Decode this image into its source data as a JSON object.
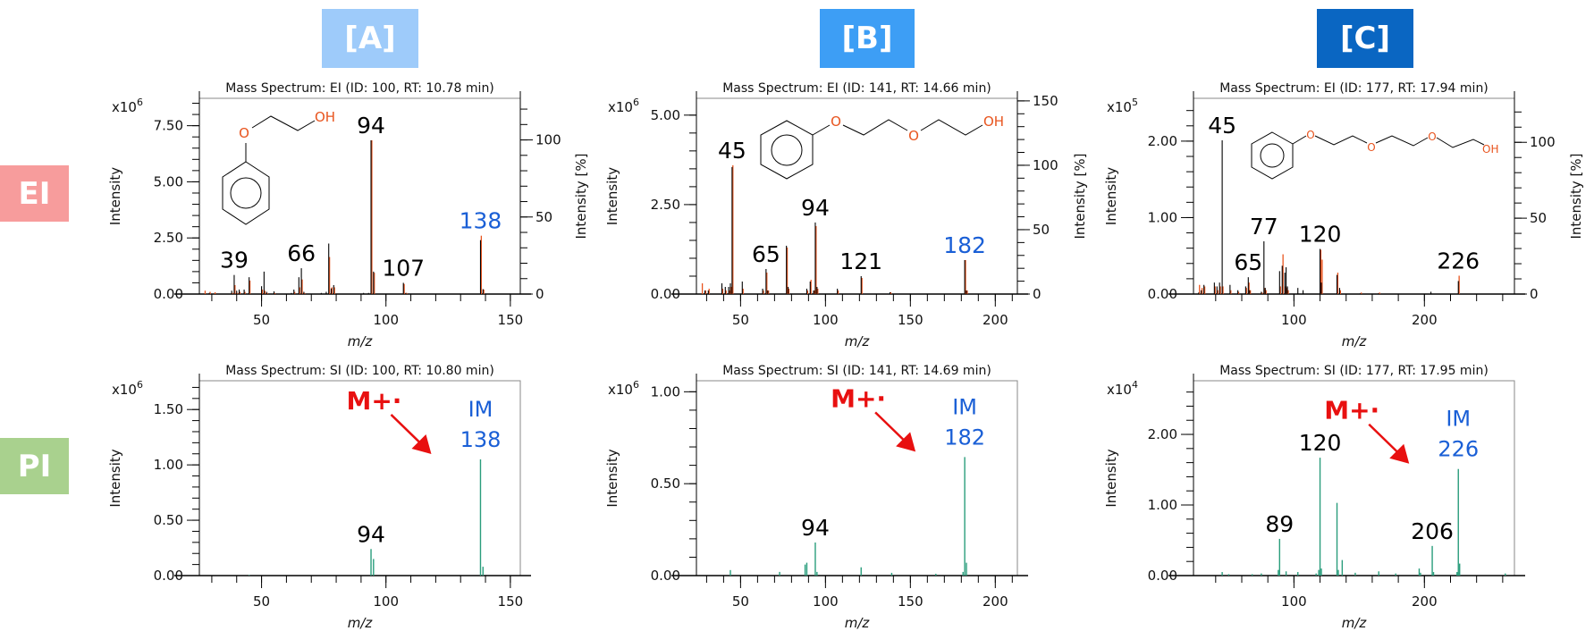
{
  "row_labels": {
    "ei": {
      "text": "EI",
      "color": "#f79c9c"
    },
    "pi": {
      "text": "PI",
      "color": "#a9d18e"
    }
  },
  "colors": {
    "measured": "#000000",
    "reference": "#e8541e",
    "si": "#2a9d7c",
    "molecular_ion_label": "#1a5fd6",
    "arrow": "#e81010",
    "heteroatom": "#e8541e"
  },
  "columns": [
    {
      "header": "[A]",
      "header_color": "#9ecbfa",
      "structure": {
        "atoms": [
          "O",
          "OH"
        ]
      },
      "ei": {
        "title": "Mass Spectrum: EI (ID: 100, RT: 10.78 min)",
        "y_multiplier": "x10",
        "y_exponent": "6",
        "ylabel": "Intensity",
        "xlabel": "m/z",
        "ylim": [
          0,
          8.72
        ],
        "yticks": [
          "0.00",
          "2.50",
          "5.00",
          "7.50"
        ],
        "yminor": 0.5,
        "xlim": [
          25,
          154
        ],
        "xticks": [
          50,
          100,
          150
        ],
        "xminor": 10,
        "right_axis": {
          "label": "Intensity [%]",
          "ylim": [
            0,
            127
          ],
          "ticks": [
            0,
            50,
            100
          ],
          "minor": 10
        },
        "peaks": [
          [
            27,
            0,
            0.15
          ],
          [
            29,
            0.05,
            0.1
          ],
          [
            31,
            0,
            0.08
          ],
          [
            38,
            0.15,
            0.05
          ],
          [
            39,
            0.85,
            0.4
          ],
          [
            40,
            0.15,
            0.05
          ],
          [
            41,
            0.2,
            0.1
          ],
          [
            43,
            0.2,
            0.1
          ],
          [
            45,
            0.75,
            0.6
          ],
          [
            50,
            0.35,
            0.2
          ],
          [
            51,
            1.0,
            0.15
          ],
          [
            52,
            0.1,
            0.05
          ],
          [
            55,
            0.12,
            0.05
          ],
          [
            62,
            0.05,
            0
          ],
          [
            63,
            0.2,
            0.1
          ],
          [
            65,
            0.75,
            0.3
          ],
          [
            66,
            1.15,
            0.65
          ],
          [
            67,
            0.1,
            0.05
          ],
          [
            74,
            0.05,
            0
          ],
          [
            76,
            0.1,
            0
          ],
          [
            77,
            2.25,
            1.65
          ],
          [
            78,
            0.25,
            0.3
          ],
          [
            79,
            0.4,
            0.3
          ],
          [
            91,
            0.05,
            0
          ],
          [
            93,
            0.05,
            0
          ],
          [
            94,
            6.85,
            6.85
          ],
          [
            95,
            1.0,
            0.95
          ],
          [
            107,
            0.5,
            0.45
          ],
          [
            108,
            0.05,
            0.05
          ],
          [
            138,
            2.4,
            2.6
          ],
          [
            139,
            0.22,
            0.2
          ]
        ],
        "labels": [
          {
            "text": "39",
            "mz": 39
          },
          {
            "text": "66",
            "mz": 66
          },
          {
            "text": "94",
            "mz": 94
          },
          {
            "text": "107",
            "mz": 107
          },
          {
            "text": "138",
            "mz": 138,
            "blue": true
          }
        ]
      },
      "si": {
        "title": "Mass Spectrum: SI (ID: 100, RT: 10.80 min)",
        "y_multiplier": "x10",
        "y_exponent": "6",
        "ylabel": "Intensity",
        "xlabel": "m/z",
        "ylim": [
          0,
          1.76
        ],
        "yticks": [
          "0.00",
          "0.50",
          "1.00",
          "1.50"
        ],
        "yminor": 0.1,
        "xlim": [
          25,
          154
        ],
        "xticks": [
          50,
          100,
          150
        ],
        "xminor": 10,
        "peaks": [
          [
            45,
            0.005
          ],
          [
            94,
            0.24
          ],
          [
            95,
            0.15
          ],
          [
            138,
            1.05
          ],
          [
            139,
            0.08
          ]
        ],
        "labels": [
          {
            "text": "94",
            "mz": 94
          }
        ],
        "molecular_ion": {
          "mz": 138,
          "tag": "IM",
          "text": "138",
          "annotation": "M+·"
        }
      }
    },
    {
      "header": "[B]",
      "header_color": "#3d9ef5",
      "structure": {
        "atoms": [
          "O",
          "O",
          "OH"
        ]
      },
      "ei": {
        "title": "Mass Spectrum: EI (ID: 141, RT: 14.66 min)",
        "y_multiplier": "x10",
        "y_exponent": "6",
        "ylabel": "Intensity",
        "xlabel": "m/z",
        "ylim": [
          0,
          5.47
        ],
        "yticks": [
          "0.00",
          "2.50",
          "5.00"
        ],
        "yminor": 0.5,
        "xlim": [
          24,
          213
        ],
        "xticks": [
          50,
          100,
          150,
          200
        ],
        "xminor": 10,
        "right_axis": {
          "label": "Intensity [%]",
          "ylim": [
            0,
            152
          ],
          "ticks": [
            0,
            50,
            100,
            150
          ],
          "minor": 10
        },
        "peaks": [
          [
            27,
            0,
            0.3
          ],
          [
            29,
            0.1,
            0.1
          ],
          [
            31,
            0.1,
            0.15
          ],
          [
            39,
            0.3,
            0.15
          ],
          [
            41,
            0.2,
            0.1
          ],
          [
            43,
            0.2,
            0.1
          ],
          [
            44,
            0.3,
            0.2
          ],
          [
            45,
            3.55,
            3.6
          ],
          [
            51,
            0.35,
            0.15
          ],
          [
            63,
            0.15,
            0.1
          ],
          [
            65,
            0.7,
            0.6
          ],
          [
            66,
            0.1,
            0.1
          ],
          [
            77,
            1.35,
            1.3
          ],
          [
            78,
            0.2,
            0.15
          ],
          [
            89,
            0.15,
            0.1
          ],
          [
            91,
            0.35,
            0.4
          ],
          [
            93,
            0.1,
            0.1
          ],
          [
            94,
            2.0,
            1.9
          ],
          [
            95,
            0.2,
            0.15
          ],
          [
            107,
            0.15,
            0.1
          ],
          [
            121,
            0.5,
            0.45
          ],
          [
            138,
            0.05,
            0.05
          ],
          [
            182,
            0.95,
            0.95
          ],
          [
            183,
            0.1,
            0.1
          ]
        ],
        "labels": [
          {
            "text": "45",
            "mz": 45
          },
          {
            "text": "65",
            "mz": 65
          },
          {
            "text": "94",
            "mz": 94
          },
          {
            "text": "121",
            "mz": 121
          },
          {
            "text": "182",
            "mz": 182,
            "blue": true
          }
        ]
      },
      "si": {
        "title": "Mass Spectrum: SI (ID: 141, RT: 14.69 min)",
        "y_multiplier": "x10",
        "y_exponent": "6",
        "ylabel": "Intensity",
        "xlabel": "m/z",
        "ylim": [
          0,
          1.06
        ],
        "yticks": [
          "0.00",
          "0.50",
          "1.00"
        ],
        "yminor": 0.1,
        "xlim": [
          24,
          213
        ],
        "xticks": [
          50,
          100,
          150,
          200
        ],
        "xminor": 10,
        "peaks": [
          [
            44,
            0.03
          ],
          [
            73,
            0.02
          ],
          [
            88,
            0.06
          ],
          [
            89,
            0.07
          ],
          [
            94,
            0.18
          ],
          [
            95,
            0.02
          ],
          [
            121,
            0.045
          ],
          [
            139,
            0.015
          ],
          [
            165,
            0.01
          ],
          [
            181,
            0.02
          ],
          [
            182,
            0.645
          ],
          [
            183,
            0.07
          ]
        ],
        "labels": [
          {
            "text": "94",
            "mz": 94
          }
        ],
        "molecular_ion": {
          "mz": 182,
          "tag": "IM",
          "text": "182",
          "annotation": "M+·"
        }
      }
    },
    {
      "header": "[C]",
      "header_color": "#0a66c2",
      "structure": {
        "atoms": [
          "O",
          "O",
          "O",
          "OH"
        ]
      },
      "ei": {
        "title": "Mass Spectrum: EI (ID: 177, RT: 17.94 min)",
        "y_multiplier": "x10",
        "y_exponent": "5",
        "ylabel": "Intensity",
        "xlabel": "m/z",
        "ylim": [
          0,
          2.56
        ],
        "yticks": [
          "0.00",
          "1.00",
          "2.00"
        ],
        "yminor": 0.2,
        "xlim": [
          23,
          269
        ],
        "xticks": [
          100,
          200
        ],
        "xminor": 20,
        "right_axis": {
          "label": "Intensity [%]",
          "ylim": [
            0,
            129
          ],
          "ticks": [
            0,
            50,
            100
          ],
          "minor": 10
        },
        "peaks": [
          [
            27,
            0.02,
            0.12
          ],
          [
            29,
            0.05,
            0.08
          ],
          [
            31,
            0.12,
            0.1
          ],
          [
            39,
            0.15,
            0.1
          ],
          [
            41,
            0.1,
            0.05
          ],
          [
            43,
            0.15,
            0.1
          ],
          [
            45,
            2.01,
            0.1
          ],
          [
            51,
            0.12,
            0.05
          ],
          [
            57,
            0.05,
            0.03
          ],
          [
            63,
            0.1,
            0.08
          ],
          [
            65,
            0.22,
            0.15
          ],
          [
            66,
            0.05,
            0.05
          ],
          [
            75,
            0.03,
            0.02
          ],
          [
            77,
            0.69,
            0.08
          ],
          [
            78,
            0.08,
            0.05
          ],
          [
            89,
            0.3,
            0.1
          ],
          [
            91,
            0.37,
            0.52
          ],
          [
            93,
            0.28,
            0.1
          ],
          [
            94,
            0.35,
            0.08
          ],
          [
            95,
            0.1,
            0.05
          ],
          [
            103,
            0.08,
            0
          ],
          [
            107,
            0.05,
            0
          ],
          [
            120,
            0.59,
            0.58
          ],
          [
            121,
            0.15,
            0.45
          ],
          [
            133,
            0.25,
            0.28
          ],
          [
            135,
            0.08,
            0.05
          ],
          [
            151,
            0.01,
            0.02
          ],
          [
            165,
            0.01,
            0.02
          ],
          [
            205,
            0.03,
            0
          ],
          [
            226,
            0.17,
            0.24
          ]
        ],
        "labels": [
          {
            "text": "45",
            "mz": 45
          },
          {
            "text": "65",
            "mz": 65
          },
          {
            "text": "77",
            "mz": 77
          },
          {
            "text": "120",
            "mz": 120
          },
          {
            "text": "226",
            "mz": 226
          }
        ]
      },
      "si": {
        "title": "Mass Spectrum: SI (ID: 177, RT: 17.95 min)",
        "y_multiplier": "x10",
        "y_exponent": "4",
        "ylabel": "Intensity",
        "xlabel": "m/z",
        "ylim": [
          0,
          2.76
        ],
        "yticks": [
          "0.00",
          "1.00",
          "2.00"
        ],
        "yminor": 0.2,
        "xlim": [
          23,
          269
        ],
        "xticks": [
          100,
          200
        ],
        "xminor": 20,
        "peaks": [
          [
            45,
            0.05
          ],
          [
            50,
            0.02
          ],
          [
            68,
            0.02
          ],
          [
            75,
            0.03
          ],
          [
            88,
            0.08
          ],
          [
            89,
            0.52
          ],
          [
            94,
            0.06
          ],
          [
            103,
            0.05
          ],
          [
            117,
            0.03
          ],
          [
            119,
            0.08
          ],
          [
            120,
            1.67
          ],
          [
            121,
            0.1
          ],
          [
            133,
            1.03
          ],
          [
            134,
            0.08
          ],
          [
            137,
            0.22
          ],
          [
            147,
            0.04
          ],
          [
            165,
            0.06
          ],
          [
            178,
            0.03
          ],
          [
            196,
            0.1
          ],
          [
            197,
            0.04
          ],
          [
            206,
            0.42
          ],
          [
            207,
            0.05
          ],
          [
            225,
            0.05
          ],
          [
            226,
            1.51
          ],
          [
            227,
            0.17
          ],
          [
            262,
            0.03
          ]
        ],
        "labels": [
          {
            "text": "89",
            "mz": 89
          },
          {
            "text": "120",
            "mz": 120
          },
          {
            "text": "206",
            "mz": 206
          }
        ],
        "molecular_ion": {
          "mz": 226,
          "tag": "IM",
          "text": "226",
          "annotation": "M+·"
        }
      }
    }
  ]
}
